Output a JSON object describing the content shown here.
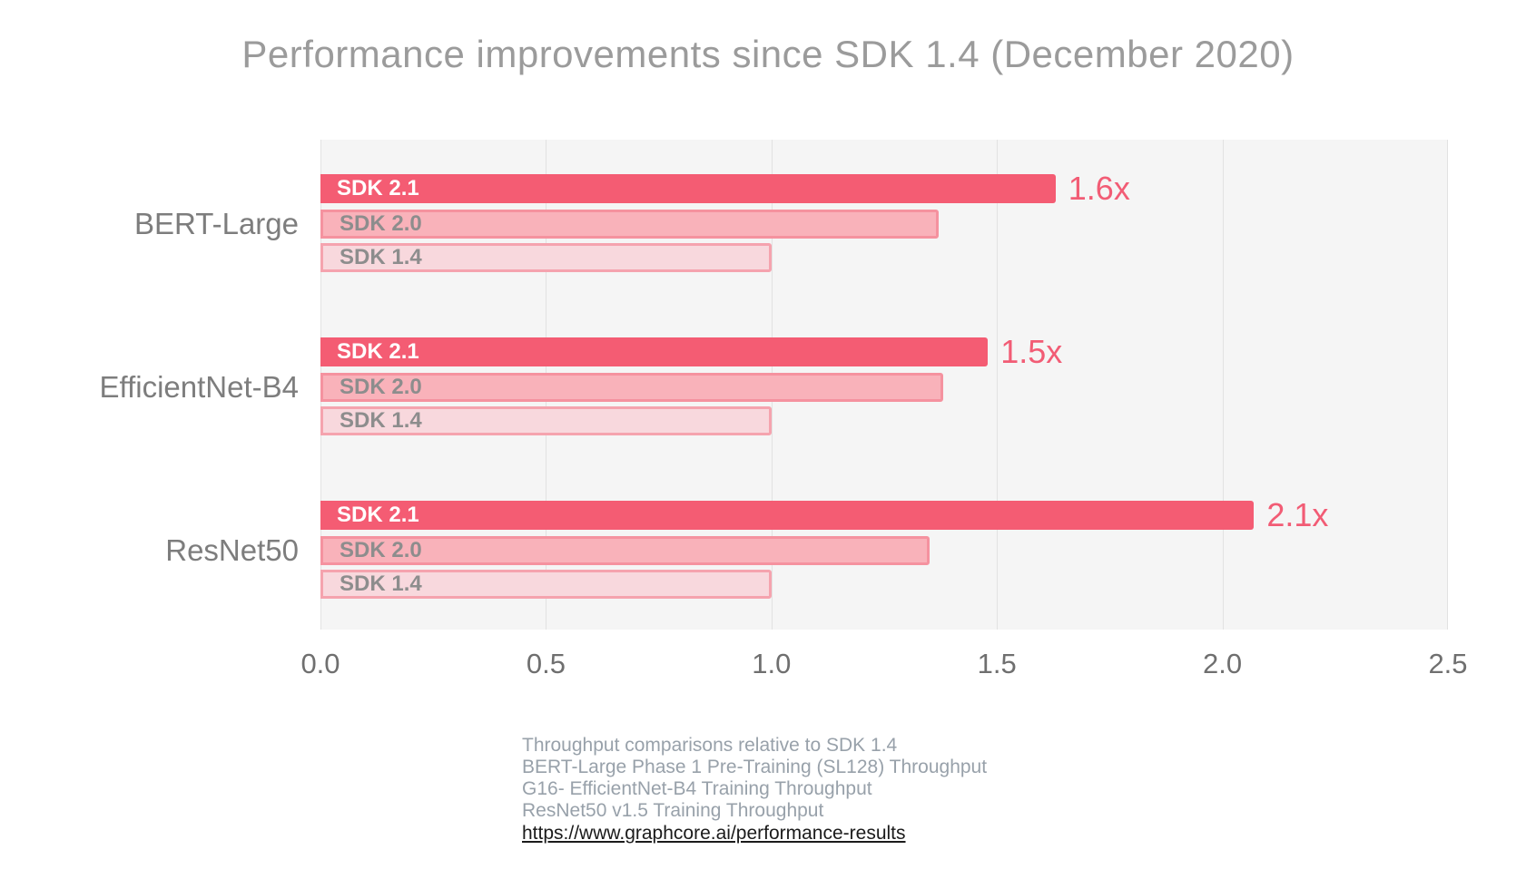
{
  "title": "Performance improvements since SDK 1.4 (December 2020)",
  "chart_data": {
    "type": "bar",
    "orientation": "horizontal",
    "title": "Performance improvements since SDK 1.4 (December 2020)",
    "categories": [
      "BERT-Large",
      "EfficientNet-B4",
      "ResNet50"
    ],
    "series": [
      {
        "name": "SDK 2.1",
        "values": [
          1.63,
          1.48,
          2.07
        ],
        "annotations": [
          "1.6x",
          "1.5x",
          "2.1x"
        ]
      },
      {
        "name": "SDK 2.0",
        "values": [
          1.37,
          1.38,
          1.35
        ],
        "annotations": [
          "",
          "",
          ""
        ]
      },
      {
        "name": "SDK 1.4",
        "values": [
          1.0,
          1.0,
          1.0
        ],
        "annotations": [
          "",
          "",
          ""
        ]
      }
    ],
    "xlim": [
      0,
      2.5
    ],
    "x_ticks": [
      "0.0",
      "0.5",
      "1.0",
      "1.5",
      "2.0",
      "2.5"
    ],
    "grid": true,
    "legend_position": "in-bar-labels",
    "plot_background": "#f5f5f5",
    "colors": {
      "sdk21_fill": "#f45c73",
      "sdk20_fill": "#f9b2ba",
      "sdk20_border": "#f5929f",
      "sdk14_fill": "#f8d8dd",
      "sdk14_border": "#f5a3ae",
      "annotation_text": "#f25c75",
      "title_text": "#9b9b9b",
      "axis_text": "#6f6f6f",
      "gridline": "#e2e2e2"
    }
  },
  "footer": {
    "lines": [
      "Throughput comparisons relative to SDK 1.4",
      "BERT-Large Phase 1 Pre-Training (SL128) Throughput",
      "G16- EfficientNet-B4 Training Throughput",
      "ResNet50 v1.5 Training Throughput"
    ],
    "link": "https://www.graphcore.ai/performance-results"
  }
}
